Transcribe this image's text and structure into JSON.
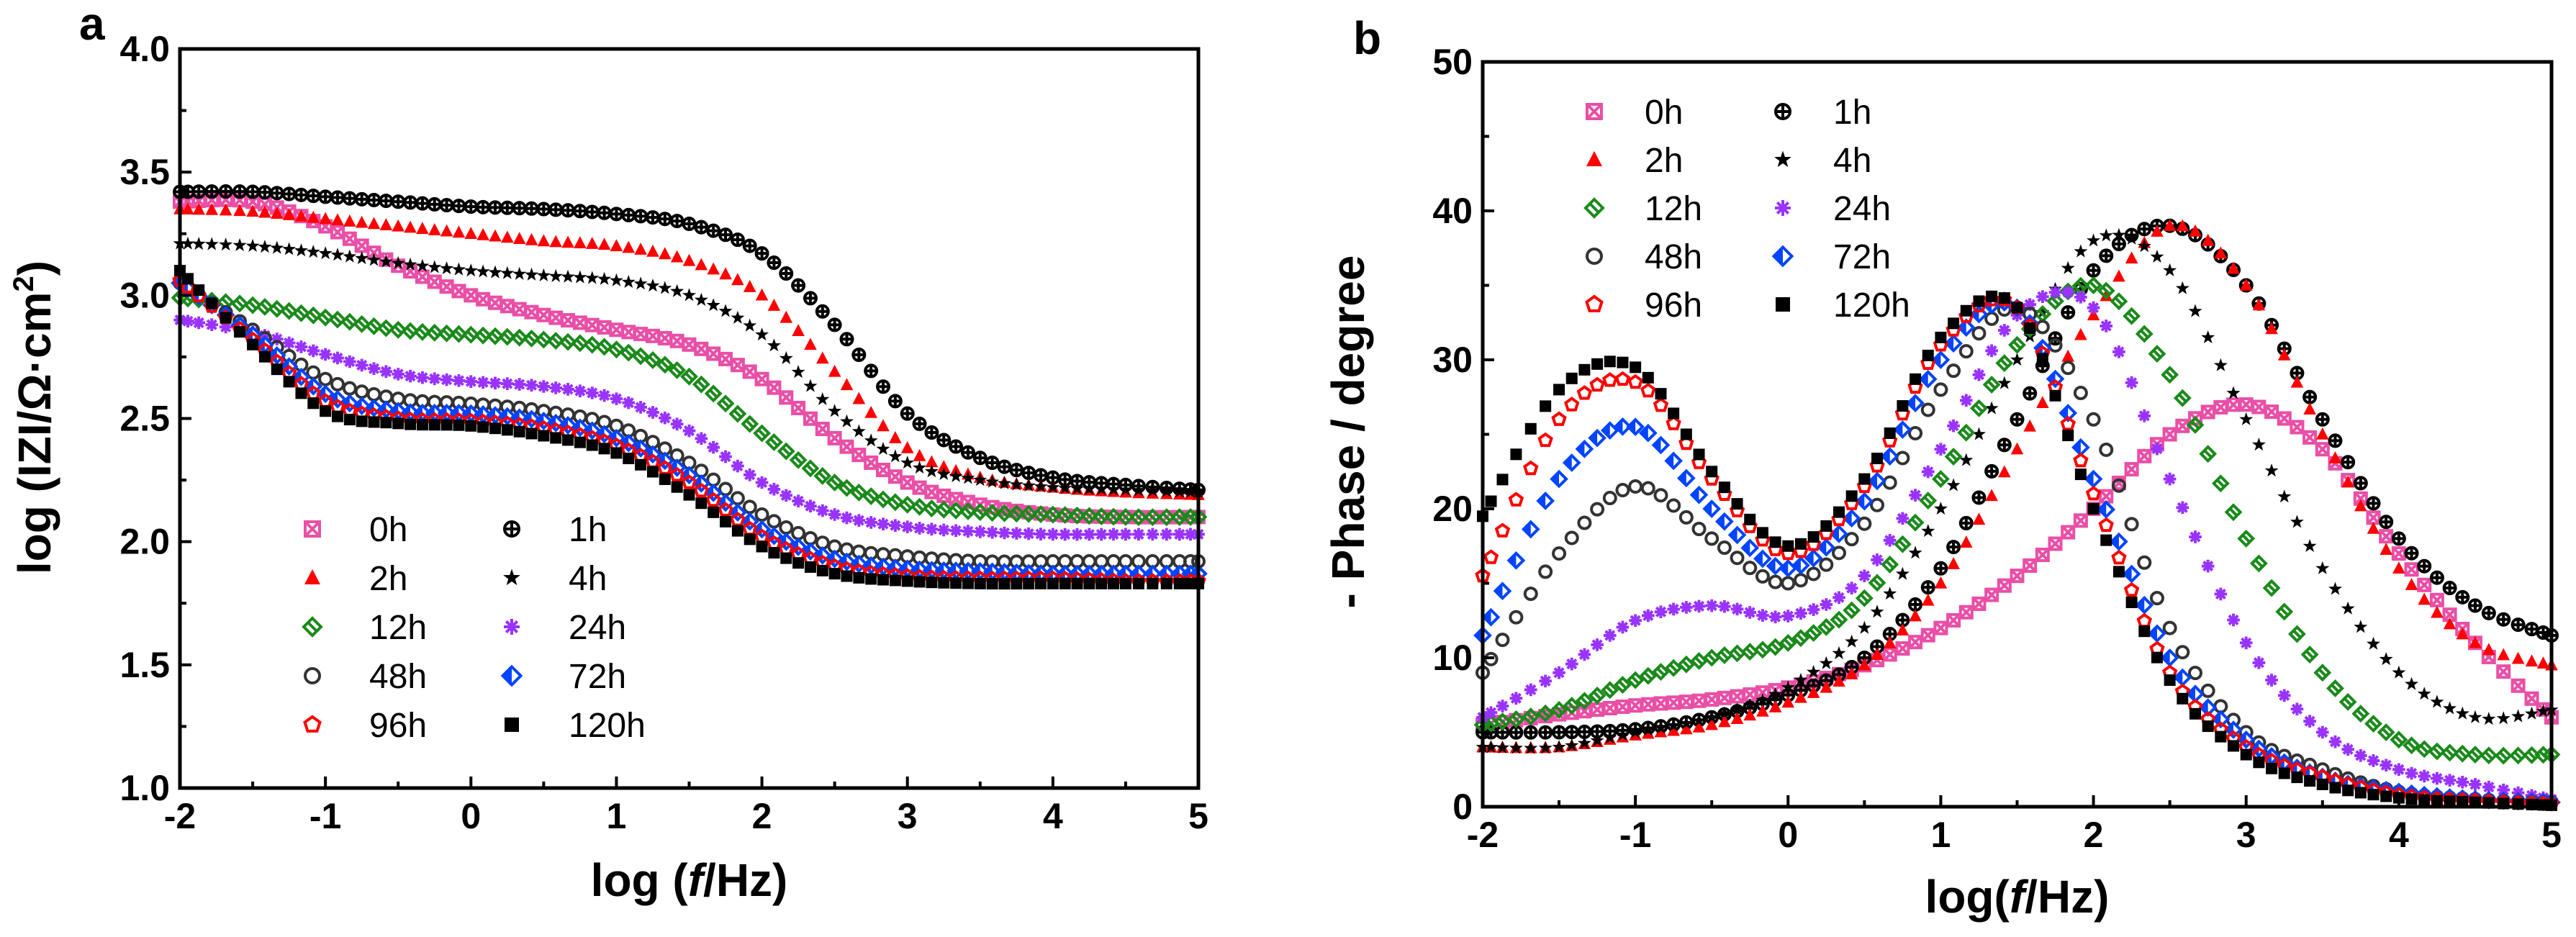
{
  "chart_data": [
    {
      "panel": "a",
      "type": "scatter",
      "xlabel_pre": "log (",
      "xlabel_var": "f",
      "xlabel_post": "/Hz)",
      "ylabel_main": "log (IZI/Ω·cm",
      "ylabel_sup": "2",
      "ylabel_close": ")",
      "xlim": [
        -2,
        5
      ],
      "ylim": [
        1.0,
        4.0
      ],
      "xticks": [
        "-2",
        "-1",
        "0",
        "1",
        "2",
        "3",
        "4",
        "5"
      ],
      "yticks": [
        "1.0",
        "1.5",
        "2.0",
        "2.5",
        "3.0",
        "3.5",
        "4.0"
      ],
      "series": [
        {
          "name": "0h",
          "color": "#e94fa6",
          "marker": "box-x",
          "x": [
            -2,
            -1.5,
            -1,
            -0.5,
            0,
            0.5,
            1,
            1.5,
            2,
            2.5,
            3,
            3.5,
            4,
            4.5,
            5
          ],
          "y": [
            3.38,
            3.38,
            3.28,
            3.12,
            3.0,
            2.92,
            2.86,
            2.8,
            2.66,
            2.42,
            2.24,
            2.15,
            2.11,
            2.1,
            2.1
          ]
        },
        {
          "name": "1h",
          "color": "#000000",
          "marker": "circle-plus",
          "x": [
            -2,
            -1.5,
            -1,
            -0.5,
            0,
            0.5,
            1,
            1.5,
            2,
            2.5,
            3,
            3.5,
            4,
            4.5,
            5
          ],
          "y": [
            3.42,
            3.42,
            3.4,
            3.38,
            3.36,
            3.35,
            3.33,
            3.29,
            3.17,
            2.88,
            2.52,
            2.34,
            2.26,
            2.23,
            2.21
          ]
        },
        {
          "name": "2h",
          "color": "#ff0000",
          "marker": "triangle",
          "x": [
            -2,
            -1.5,
            -1,
            -0.5,
            0,
            0.5,
            1,
            1.5,
            2,
            2.5,
            3,
            3.5,
            4,
            4.5,
            5
          ],
          "y": [
            3.35,
            3.34,
            3.31,
            3.28,
            3.25,
            3.22,
            3.2,
            3.14,
            3.0,
            2.69,
            2.38,
            2.26,
            2.22,
            2.2,
            2.19
          ]
        },
        {
          "name": "4h",
          "color": "#000000",
          "marker": "star",
          "x": [
            -2,
            -1.5,
            -1,
            -0.5,
            0,
            0.5,
            1,
            1.5,
            2,
            2.5,
            3,
            3.5,
            4,
            4.5,
            5
          ],
          "y": [
            3.21,
            3.2,
            3.17,
            3.13,
            3.1,
            3.08,
            3.06,
            3.0,
            2.84,
            2.53,
            2.32,
            2.25,
            2.22,
            2.21,
            2.2
          ]
        },
        {
          "name": "12h",
          "color": "#1a8a1a",
          "marker": "diamond-x",
          "x": [
            -2,
            -1.5,
            -1,
            -0.5,
            0,
            0.5,
            1,
            1.5,
            2,
            2.5,
            3,
            3.5,
            4,
            4.5,
            5
          ],
          "y": [
            2.99,
            2.96,
            2.91,
            2.86,
            2.84,
            2.82,
            2.78,
            2.67,
            2.44,
            2.24,
            2.15,
            2.12,
            2.11,
            2.1,
            2.1
          ]
        },
        {
          "name": "24h",
          "color": "#9933ff",
          "marker": "asterisk",
          "x": [
            -2,
            -1.5,
            -1,
            -0.5,
            0,
            0.5,
            1,
            1.5,
            2,
            2.5,
            3,
            3.5,
            4,
            4.5,
            5
          ],
          "y": [
            2.9,
            2.85,
            2.76,
            2.68,
            2.65,
            2.63,
            2.58,
            2.45,
            2.24,
            2.11,
            2.06,
            2.04,
            2.03,
            2.03,
            2.03
          ]
        },
        {
          "name": "48h",
          "color": "#333333",
          "marker": "open-circle",
          "x": [
            -2,
            -1.5,
            -1,
            -0.5,
            0,
            0.5,
            1,
            1.5,
            2,
            2.5,
            3,
            3.5,
            4,
            4.5,
            5
          ],
          "y": [
            3.05,
            2.86,
            2.66,
            2.58,
            2.56,
            2.53,
            2.47,
            2.32,
            2.11,
            1.98,
            1.94,
            1.92,
            1.92,
            1.92,
            1.92
          ]
        },
        {
          "name": "72h",
          "color": "#0044ff",
          "marker": "half-diamond",
          "x": [
            -2,
            -1.5,
            -1,
            -0.5,
            0,
            0.5,
            1,
            1.5,
            2,
            2.5,
            3,
            3.5,
            4,
            4.5,
            5
          ],
          "y": [
            3.05,
            2.84,
            2.6,
            2.53,
            2.52,
            2.49,
            2.42,
            2.27,
            2.05,
            1.93,
            1.89,
            1.88,
            1.87,
            1.87,
            1.87
          ]
        },
        {
          "name": "96h",
          "color": "#ff0000",
          "marker": "pentagon",
          "x": [
            -2,
            -1.5,
            -1,
            -0.5,
            0,
            0.5,
            1,
            1.5,
            2,
            2.5,
            3,
            3.5,
            4,
            4.5,
            5
          ],
          "y": [
            3.06,
            2.82,
            2.57,
            2.5,
            2.49,
            2.46,
            2.39,
            2.24,
            2.02,
            1.9,
            1.86,
            1.85,
            1.85,
            1.84,
            1.84
          ]
        },
        {
          "name": "120h",
          "color": "#000000",
          "marker": "square",
          "x": [
            -2,
            -1.5,
            -1,
            -0.5,
            0,
            0.5,
            1,
            1.5,
            2,
            2.5,
            3,
            3.5,
            4,
            4.5,
            5
          ],
          "y": [
            3.1,
            2.8,
            2.53,
            2.48,
            2.47,
            2.43,
            2.36,
            2.19,
            1.98,
            1.87,
            1.84,
            1.83,
            1.83,
            1.83,
            1.83
          ]
        }
      ]
    },
    {
      "panel": "b",
      "type": "scatter",
      "xlabel_pre": "log(",
      "xlabel_var": "f",
      "xlabel_post": "/Hz)",
      "ylabel": "- Phase / degree",
      "xlim": [
        -2,
        5
      ],
      "ylim": [
        0,
        50
      ],
      "xticks": [
        "-2",
        "-1",
        "0",
        "1",
        "2",
        "3",
        "4",
        "5"
      ],
      "yticks": [
        "0",
        "10",
        "20",
        "30",
        "40",
        "50"
      ],
      "series": [
        {
          "name": "0h",
          "color": "#e94fa6",
          "marker": "box-x",
          "x": [
            -2,
            -1.5,
            -1,
            -0.5,
            0,
            0.5,
            1,
            1.5,
            2,
            2.5,
            3,
            3.5,
            4,
            4.5,
            5
          ],
          "y": [
            5.5,
            6.2,
            6.8,
            7.2,
            8.0,
            9.5,
            12.0,
            15.5,
            20.0,
            25.0,
            27.0,
            24.0,
            17.0,
            11.0,
            6.0
          ]
        },
        {
          "name": "1h",
          "color": "#000000",
          "marker": "circle-plus",
          "x": [
            -2,
            -1.5,
            -1,
            -0.5,
            0,
            0.5,
            1,
            1.5,
            2,
            2.5,
            3,
            3.5,
            4,
            4.5,
            5
          ],
          "y": [
            5.0,
            5.0,
            5.2,
            6.0,
            7.5,
            10.0,
            16.0,
            26.0,
            36.0,
            39.0,
            35.0,
            26.0,
            18.0,
            13.5,
            11.5
          ]
        },
        {
          "name": "2h",
          "color": "#ff0000",
          "marker": "triangle",
          "x": [
            -2,
            -1.5,
            -1,
            -0.5,
            0,
            0.5,
            1,
            1.5,
            2,
            2.5,
            3,
            3.5,
            4,
            4.5,
            5
          ],
          "y": [
            4.0,
            4.0,
            4.8,
            5.5,
            7.0,
            9.5,
            15.0,
            24.0,
            33.0,
            39.0,
            35.0,
            25.0,
            16.0,
            11.0,
            9.5
          ]
        },
        {
          "name": "4h",
          "color": "#000000",
          "marker": "star",
          "x": [
            -2,
            -1.5,
            -1,
            -0.5,
            0,
            0.5,
            1,
            1.5,
            2,
            2.5,
            3,
            3.5,
            4,
            4.5,
            5
          ],
          "y": [
            4.0,
            4.0,
            5.0,
            6.0,
            8.0,
            12.0,
            20.0,
            30.0,
            38.0,
            36.0,
            26.0,
            16.0,
            9.0,
            6.0,
            6.5
          ]
        },
        {
          "name": "12h",
          "color": "#1a8a1a",
          "marker": "diamond-x",
          "x": [
            -2,
            -1.5,
            -1,
            -0.5,
            0,
            0.5,
            1,
            1.5,
            2,
            2.5,
            3,
            3.5,
            4,
            4.5,
            5
          ],
          "y": [
            5.5,
            6.5,
            8.5,
            10.0,
            11.0,
            14.0,
            22.0,
            31.0,
            35.0,
            29.0,
            18.0,
            9.0,
            4.5,
            3.5,
            3.5
          ]
        },
        {
          "name": "24h",
          "color": "#9933ff",
          "marker": "asterisk",
          "x": [
            -2,
            -1.5,
            -1,
            -0.5,
            0,
            0.5,
            1,
            1.5,
            2,
            2.5,
            3,
            3.5,
            4,
            4.5,
            5
          ],
          "y": [
            6.0,
            9.0,
            12.5,
            13.5,
            12.8,
            15.5,
            24.0,
            33.0,
            33.5,
            22.0,
            11.0,
            5.0,
            2.5,
            1.5,
            0.5
          ]
        },
        {
          "name": "48h",
          "color": "#333333",
          "marker": "open-circle",
          "x": [
            -2,
            -1.5,
            -1,
            -0.5,
            0,
            0.5,
            1,
            1.5,
            2,
            2.5,
            3,
            3.5,
            4,
            4.5,
            5
          ],
          "y": [
            9.0,
            17.0,
            21.5,
            18.0,
            15.0,
            19.0,
            28.0,
            33.5,
            26.0,
            12.0,
            5.0,
            2.5,
            1.0,
            0.5,
            0.3
          ]
        },
        {
          "name": "72h",
          "color": "#0044ff",
          "marker": "half-diamond",
          "x": [
            -2,
            -1.5,
            -1,
            -0.5,
            0,
            0.5,
            1,
            1.5,
            2,
            2.5,
            3,
            3.5,
            4,
            4.5,
            5
          ],
          "y": [
            11.5,
            22.0,
            25.5,
            20.0,
            16.0,
            20.5,
            30.0,
            33.5,
            22.0,
            10.0,
            4.5,
            2.0,
            1.0,
            0.5,
            0.3
          ]
        },
        {
          "name": "96h",
          "color": "#ff0000",
          "marker": "pentagon",
          "x": [
            -2,
            -1.5,
            -1,
            -0.5,
            0,
            0.5,
            1,
            1.5,
            2,
            2.5,
            3,
            3.5,
            4,
            4.5,
            5
          ],
          "y": [
            15.5,
            26.0,
            28.5,
            22.0,
            17.0,
            21.5,
            31.0,
            33.5,
            21.0,
            9.0,
            4.0,
            2.0,
            0.8,
            0.4,
            0.2
          ]
        },
        {
          "name": "120h",
          "color": "#000000",
          "marker": "square",
          "x": [
            -2,
            -1.5,
            -1,
            -0.5,
            0,
            0.5,
            1,
            1.5,
            2,
            2.5,
            3,
            3.5,
            4,
            4.5,
            5
          ],
          "y": [
            19.5,
            28.0,
            29.5,
            22.5,
            17.5,
            22.0,
            31.5,
            33.5,
            20.0,
            8.5,
            3.5,
            1.5,
            0.6,
            0.3,
            0.1
          ]
        }
      ]
    }
  ]
}
